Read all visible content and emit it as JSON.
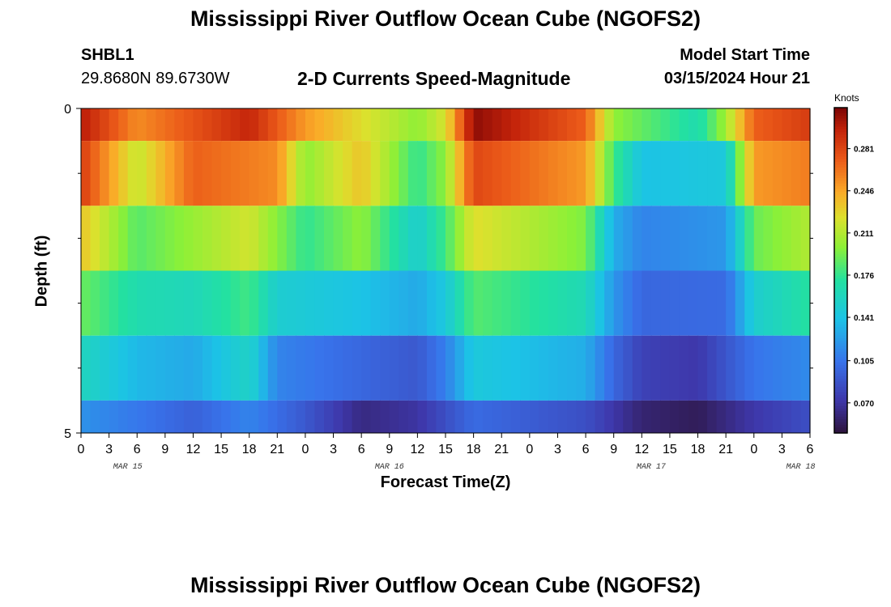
{
  "header": {
    "title": "Mississippi River Outflow Ocean Cube (NGOFS2)",
    "station_id": "SHBL1",
    "coordinates": "29.8680N  89.6730W",
    "product": "2-D Currents Speed-Magnitude",
    "model_start_label": "Model Start Time",
    "model_start_value": "03/15/2024 Hour 21"
  },
  "footer": {
    "title": "Mississippi River Outflow Ocean Cube (NGOFS2)"
  },
  "chart_data": {
    "type": "heatmap",
    "xlabel": "Forecast Time(Z)",
    "ylabel": "Depth (ft)",
    "ylim": [
      0,
      5
    ],
    "y_tick_labels": [
      "0",
      "5"
    ],
    "x_tick_labels": [
      "0",
      "3",
      "6",
      "9",
      "12",
      "15",
      "18",
      "21",
      "0",
      "3",
      "6",
      "9",
      "12",
      "15",
      "18",
      "21",
      "0",
      "3",
      "6",
      "9",
      "12",
      "15",
      "18",
      "21",
      "0",
      "3",
      "6"
    ],
    "date_labels": [
      "MAR 15",
      "MAR 16",
      "MAR 17",
      "MAR 18"
    ],
    "colorbar": {
      "unit": "Knots",
      "ticks": [
        "0.281",
        "0.246",
        "0.211",
        "0.176",
        "0.141",
        "0.105",
        "0.070"
      ],
      "range": [
        0.045,
        0.315
      ]
    },
    "grid": false,
    "rows": [
      {
        "depth_band": [
          0,
          0.5
        ],
        "keyframes": [
          [
            0,
            0.3
          ],
          [
            6,
            0.255
          ],
          [
            18,
            0.295
          ],
          [
            24,
            0.25
          ],
          [
            36,
            0.2
          ],
          [
            39,
            0.222
          ],
          [
            42,
            0.31
          ],
          [
            54,
            0.27
          ],
          [
            57,
            0.2
          ],
          [
            66,
            0.165
          ],
          [
            69,
            0.205
          ],
          [
            72,
            0.27
          ],
          [
            78,
            0.285
          ]
        ]
      },
      {
        "depth_band": [
          0.5,
          1.5
        ],
        "keyframes": [
          [
            0,
            0.285
          ],
          [
            6,
            0.215
          ],
          [
            12,
            0.27
          ],
          [
            21,
            0.255
          ],
          [
            24,
            0.2
          ],
          [
            30,
            0.235
          ],
          [
            36,
            0.175
          ],
          [
            39,
            0.2
          ],
          [
            42,
            0.28
          ],
          [
            54,
            0.25
          ],
          [
            57,
            0.18
          ],
          [
            60,
            0.14
          ],
          [
            69,
            0.145
          ],
          [
            72,
            0.25
          ],
          [
            78,
            0.26
          ]
        ]
      },
      {
        "depth_band": [
          1.5,
          2.5
        ],
        "keyframes": [
          [
            0,
            0.235
          ],
          [
            6,
            0.185
          ],
          [
            18,
            0.22
          ],
          [
            24,
            0.175
          ],
          [
            30,
            0.2
          ],
          [
            36,
            0.15
          ],
          [
            39,
            0.18
          ],
          [
            42,
            0.225
          ],
          [
            54,
            0.195
          ],
          [
            57,
            0.13
          ],
          [
            60,
            0.112
          ],
          [
            69,
            0.12
          ],
          [
            72,
            0.19
          ],
          [
            78,
            0.21
          ]
        ]
      },
      {
        "depth_band": [
          2.5,
          3.5
        ],
        "keyframes": [
          [
            0,
            0.19
          ],
          [
            6,
            0.165
          ],
          [
            12,
            0.16
          ],
          [
            18,
            0.18
          ],
          [
            21,
            0.15
          ],
          [
            30,
            0.14
          ],
          [
            36,
            0.128
          ],
          [
            39,
            0.145
          ],
          [
            42,
            0.185
          ],
          [
            54,
            0.162
          ],
          [
            57,
            0.12
          ],
          [
            60,
            0.098
          ],
          [
            69,
            0.1
          ],
          [
            72,
            0.15
          ],
          [
            78,
            0.172
          ]
        ]
      },
      {
        "depth_band": [
          3.5,
          4.5
        ],
        "keyframes": [
          [
            0,
            0.158
          ],
          [
            6,
            0.135
          ],
          [
            12,
            0.128
          ],
          [
            18,
            0.155
          ],
          [
            21,
            0.112
          ],
          [
            30,
            0.098
          ],
          [
            36,
            0.09
          ],
          [
            39,
            0.11
          ],
          [
            42,
            0.145
          ],
          [
            54,
            0.13
          ],
          [
            57,
            0.098
          ],
          [
            60,
            0.078
          ],
          [
            66,
            0.072
          ],
          [
            72,
            0.105
          ],
          [
            78,
            0.115
          ]
        ]
      },
      {
        "depth_band": [
          4.5,
          5
        ],
        "keyframes": [
          [
            0,
            0.118
          ],
          [
            12,
            0.095
          ],
          [
            18,
            0.112
          ],
          [
            24,
            0.09
          ],
          [
            30,
            0.062
          ],
          [
            36,
            0.07
          ],
          [
            42,
            0.1
          ],
          [
            54,
            0.085
          ],
          [
            60,
            0.058
          ],
          [
            66,
            0.052
          ],
          [
            72,
            0.072
          ],
          [
            78,
            0.085
          ]
        ]
      }
    ]
  }
}
